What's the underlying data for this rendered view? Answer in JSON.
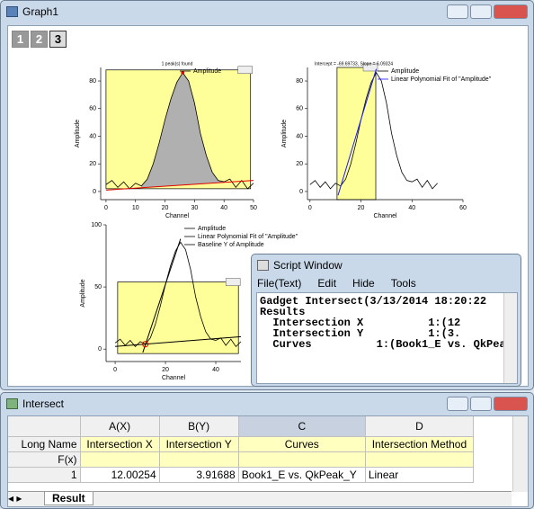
{
  "graph_window": {
    "title": "Graph1",
    "pages": [
      "1",
      "2",
      "3"
    ]
  },
  "data": {
    "x": [
      0,
      2,
      4,
      6,
      8,
      10,
      12,
      14,
      16,
      18,
      20,
      22,
      24,
      26,
      28,
      30,
      32,
      34,
      36,
      38,
      40,
      42,
      44,
      46,
      48,
      50
    ],
    "amplitude": [
      5,
      8,
      3,
      7,
      2,
      6,
      4,
      9,
      20,
      35,
      52,
      67,
      79,
      86,
      80,
      64,
      42,
      26,
      14,
      8,
      7,
      9,
      3,
      8,
      2,
      6
    ]
  },
  "graphs": [
    {
      "title": "1 peak(s) found",
      "x_label": "Channel",
      "y_label": "Amplitude",
      "xlim": [
        -1.8,
        50
      ],
      "ylim": [
        -5.9,
        89.8
      ],
      "xticks": [
        0,
        10,
        20,
        30,
        40,
        50
      ],
      "yticks": [
        0,
        20,
        40,
        60,
        80
      ],
      "legend": [
        "Amplitude"
      ],
      "region": {
        "x": [
          0,
          49
        ],
        "y": [
          2,
          88
        ]
      },
      "baseline": {
        "x": [
          0,
          50
        ],
        "values": [
          1,
          8
        ]
      },
      "peak": {
        "x": 26,
        "y": 86
      }
    },
    {
      "title": "Intercept = -69.69733, Slope = 6.09324",
      "x_label": "Channel",
      "y_label": "Amplitude",
      "xlim": [
        -1,
        60
      ],
      "ylim": [
        -5.9,
        89.8
      ],
      "xticks": [
        0,
        20,
        40,
        60
      ],
      "yticks": [
        0,
        20,
        40,
        60,
        80
      ],
      "legend": [
        "Amplitude",
        "Linear Polynomial Fit of \"Amplitude\""
      ],
      "region": {
        "x": [
          10.6,
          25.8
        ],
        "y": [
          -5.9,
          89.8
        ]
      },
      "fit": {
        "x": [
          11,
          26
        ],
        "values": [
          -2.7,
          88.7
        ]
      }
    },
    {
      "title": "",
      "x_label": "Channel",
      "y_label": "Amplitude",
      "xlim": [
        -3.6,
        50
      ],
      "ylim": [
        -10,
        100
      ],
      "xticks": [
        0,
        20,
        40
      ],
      "yticks": [
        0,
        50,
        100
      ],
      "legend": [
        "Amplitude",
        "Linear Polynomial Fit of \"Amplitude\"",
        "Baseline Y of Amplitude"
      ],
      "region": {
        "x": [
          1,
          49
        ],
        "y": [
          -3.6,
          54
        ]
      },
      "fit": {
        "x": [
          11,
          26
        ],
        "values": [
          -2.7,
          88.7
        ]
      },
      "baseline": {
        "x": [
          0,
          50
        ],
        "values": [
          2.1,
          10
        ]
      },
      "intersection": {
        "x": 12.00254,
        "y": 3.91688
      }
    }
  ],
  "script_window": {
    "title": "Script Window",
    "menu": [
      "File(Text)",
      "Edit",
      "Hide",
      "Tools"
    ],
    "lines": [
      "Gadget Intersect(3/13/2014 18:20:22",
      "Results",
      "  Intersection X          1:(12",
      "  Intersection Y          1:(3.",
      "  Curves          1:(Book1_E vs. QkPea"
    ]
  },
  "intersect": {
    "title": "Intersect",
    "columns": [
      "A(X)",
      "B(Y)",
      "C",
      "D"
    ],
    "row_headers": [
      "Long Name",
      "F(x)",
      "1"
    ],
    "long_name": [
      "Intersection X",
      "Intersection Y",
      "Curves",
      "Intersection Method"
    ],
    "rows": [
      [
        "12.00254",
        "3.91688",
        "Book1_E vs. QkPeak_Y",
        "Linear"
      ]
    ],
    "tab": "Result"
  }
}
